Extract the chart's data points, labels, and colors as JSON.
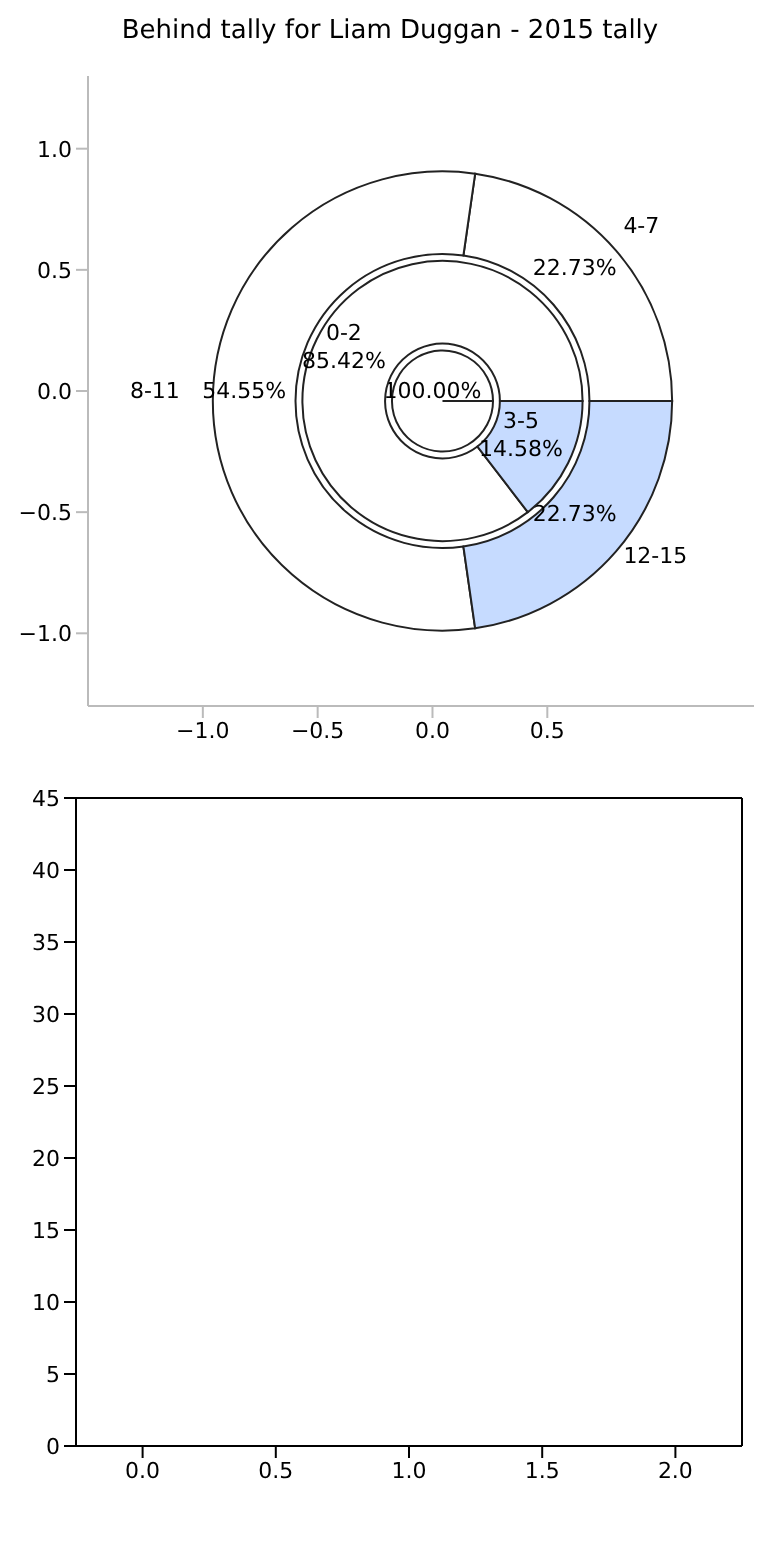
{
  "chart_data": [
    {
      "type": "scatter",
      "title": "Behind tally for Liam Duggan - 2015 tally",
      "xlim": [
        -1.5,
        1.4
      ],
      "ylim": [
        -1.3,
        1.3
      ],
      "xticks": [
        {
          "value": -1,
          "label": "−1.0"
        },
        {
          "value": -0.5,
          "label": "−0.5"
        },
        {
          "value": 0,
          "label": "0.0"
        },
        {
          "value": 0.5,
          "label": "0.5"
        }
      ],
      "yticks": [
        {
          "value": -1,
          "label": "−1.0"
        },
        {
          "value": -0.5,
          "label": "−0.5"
        },
        {
          "value": 0,
          "label": "0.0"
        },
        {
          "value": 0.5,
          "label": "0.5"
        },
        {
          "value": 1,
          "label": "1.0"
        }
      ]
    },
    {
      "type": "donut",
      "categories": [
        "4-7",
        "8-11",
        "12-15"
      ],
      "values": [
        22.73,
        54.55,
        22.73
      ],
      "value_labels": [
        "22.73%",
        "54.55%",
        "22.73%"
      ],
      "colors": [
        "#ffffff",
        "#ffffff",
        "#c6dbff"
      ]
    },
    {
      "type": "donut",
      "categories": [
        "0-2",
        "3-5"
      ],
      "values": [
        85.42,
        14.58
      ],
      "value_labels": [
        "85.42%",
        "14.58%"
      ],
      "colors": [
        "#ffffff",
        "#c6dbff"
      ]
    },
    {
      "type": "pie",
      "categories": [
        null
      ],
      "values": [
        100
      ],
      "value_labels": [
        "100.00%"
      ],
      "colors": [
        "#ffffff"
      ]
    },
    {
      "type": "bar",
      "xlim": [
        -0.25,
        2.25
      ],
      "xticks": [
        {
          "value": 0,
          "label": "0.0"
        },
        {
          "value": 0.5,
          "label": "0.5"
        },
        {
          "value": 1,
          "label": "1.0"
        },
        {
          "value": 1.5,
          "label": "1.5"
        },
        {
          "value": 2,
          "label": "2.0"
        }
      ],
      "ylim": [
        0,
        45
      ],
      "yticks": [
        0,
        5,
        10,
        15,
        20,
        25,
        30,
        35,
        40,
        45
      ]
    }
  ]
}
